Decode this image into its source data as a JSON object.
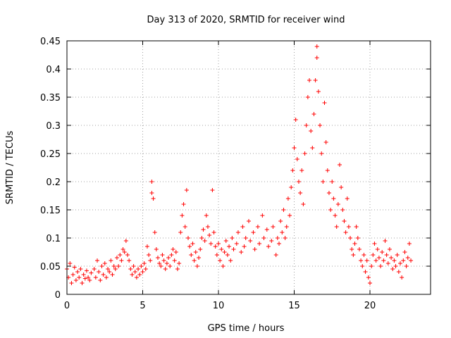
{
  "chart_data": {
    "type": "scatter",
    "title": "Day 313 of 2020, SRMTID for receiver wind",
    "xlabel": "GPS time / hours",
    "ylabel": "SRMTID / TECUs",
    "xlim": [
      0,
      24
    ],
    "ylim": [
      0,
      0.45
    ],
    "grid": true,
    "marker": "plus",
    "color": "#ff0000",
    "x_ticks": [
      {
        "value": 0,
        "label": "0"
      },
      {
        "value": 5,
        "label": "5"
      },
      {
        "value": 10,
        "label": "10"
      },
      {
        "value": 15,
        "label": "15"
      },
      {
        "value": 20,
        "label": "20"
      }
    ],
    "y_ticks": [
      {
        "value": 0,
        "label": "0"
      },
      {
        "value": 0.05,
        "label": "0.05"
      },
      {
        "value": 0.1,
        "label": "0.1"
      },
      {
        "value": 0.15,
        "label": "0.15"
      },
      {
        "value": 0.2,
        "label": "0.2"
      },
      {
        "value": 0.25,
        "label": "0.25"
      },
      {
        "value": 0.3,
        "label": "0.3"
      },
      {
        "value": 0.35,
        "label": "0.35"
      },
      {
        "value": 0.4,
        "label": "0.4"
      },
      {
        "value": 0.45,
        "label": "0.45"
      }
    ],
    "series": [
      {
        "name": "SRMTID",
        "points": [
          [
            0.0,
            0.045
          ],
          [
            0.1,
            0.03
          ],
          [
            0.2,
            0.055
          ],
          [
            0.3,
            0.02
          ],
          [
            0.4,
            0.035
          ],
          [
            0.5,
            0.048
          ],
          [
            0.6,
            0.025
          ],
          [
            0.7,
            0.04
          ],
          [
            0.8,
            0.03
          ],
          [
            0.9,
            0.045
          ],
          [
            1.0,
            0.02
          ],
          [
            1.1,
            0.035
          ],
          [
            1.2,
            0.028
          ],
          [
            1.3,
            0.042
          ],
          [
            1.4,
            0.03
          ],
          [
            1.5,
            0.025
          ],
          [
            1.6,
            0.038
          ],
          [
            1.8,
            0.045
          ],
          [
            1.9,
            0.03
          ],
          [
            2.0,
            0.06
          ],
          [
            2.1,
            0.04
          ],
          [
            2.2,
            0.025
          ],
          [
            2.3,
            0.05
          ],
          [
            2.4,
            0.035
          ],
          [
            2.5,
            0.055
          ],
          [
            2.6,
            0.03
          ],
          [
            2.7,
            0.045
          ],
          [
            2.8,
            0.04
          ],
          [
            2.9,
            0.06
          ],
          [
            3.0,
            0.035
          ],
          [
            3.1,
            0.05
          ],
          [
            3.2,
            0.045
          ],
          [
            3.3,
            0.065
          ],
          [
            3.4,
            0.05
          ],
          [
            3.5,
            0.07
          ],
          [
            3.6,
            0.06
          ],
          [
            3.7,
            0.08
          ],
          [
            3.8,
            0.075
          ],
          [
            3.9,
            0.095
          ],
          [
            4.0,
            0.07
          ],
          [
            4.1,
            0.06
          ],
          [
            4.2,
            0.045
          ],
          [
            4.3,
            0.035
          ],
          [
            4.4,
            0.05
          ],
          [
            4.5,
            0.04
          ],
          [
            4.6,
            0.03
          ],
          [
            4.7,
            0.045
          ],
          [
            4.8,
            0.035
          ],
          [
            4.9,
            0.05
          ],
          [
            5.0,
            0.04
          ],
          [
            5.1,
            0.055
          ],
          [
            5.2,
            0.045
          ],
          [
            5.3,
            0.085
          ],
          [
            5.4,
            0.07
          ],
          [
            5.5,
            0.06
          ],
          [
            5.6,
            0.18
          ],
          [
            5.6,
            0.2
          ],
          [
            5.7,
            0.17
          ],
          [
            5.8,
            0.11
          ],
          [
            5.9,
            0.08
          ],
          [
            6.0,
            0.065
          ],
          [
            6.1,
            0.055
          ],
          [
            6.2,
            0.05
          ],
          [
            6.3,
            0.07
          ],
          [
            6.4,
            0.06
          ],
          [
            6.5,
            0.045
          ],
          [
            6.6,
            0.055
          ],
          [
            6.7,
            0.065
          ],
          [
            6.8,
            0.05
          ],
          [
            6.9,
            0.07
          ],
          [
            7.0,
            0.08
          ],
          [
            7.1,
            0.06
          ],
          [
            7.2,
            0.075
          ],
          [
            7.3,
            0.045
          ],
          [
            7.4,
            0.055
          ],
          [
            7.5,
            0.11
          ],
          [
            7.6,
            0.14
          ],
          [
            7.7,
            0.16
          ],
          [
            7.8,
            0.12
          ],
          [
            7.9,
            0.185
          ],
          [
            8.0,
            0.1
          ],
          [
            8.1,
            0.085
          ],
          [
            8.2,
            0.07
          ],
          [
            8.3,
            0.09
          ],
          [
            8.4,
            0.06
          ],
          [
            8.5,
            0.075
          ],
          [
            8.6,
            0.05
          ],
          [
            8.7,
            0.065
          ],
          [
            8.8,
            0.08
          ],
          [
            8.9,
            0.1
          ],
          [
            9.0,
            0.115
          ],
          [
            9.1,
            0.095
          ],
          [
            9.2,
            0.14
          ],
          [
            9.3,
            0.12
          ],
          [
            9.4,
            0.105
          ],
          [
            9.5,
            0.09
          ],
          [
            9.6,
            0.185
          ],
          [
            9.7,
            0.11
          ],
          [
            9.8,
            0.085
          ],
          [
            9.9,
            0.07
          ],
          [
            10.0,
            0.09
          ],
          [
            10.1,
            0.06
          ],
          [
            10.2,
            0.08
          ],
          [
            10.3,
            0.05
          ],
          [
            10.4,
            0.075
          ],
          [
            10.5,
            0.095
          ],
          [
            10.6,
            0.07
          ],
          [
            10.7,
            0.085
          ],
          [
            10.8,
            0.06
          ],
          [
            10.9,
            0.1
          ],
          [
            11.0,
            0.08
          ],
          [
            11.2,
            0.09
          ],
          [
            11.3,
            0.11
          ],
          [
            11.5,
            0.075
          ],
          [
            11.6,
            0.12
          ],
          [
            11.7,
            0.085
          ],
          [
            11.8,
            0.1
          ],
          [
            12.0,
            0.13
          ],
          [
            12.1,
            0.095
          ],
          [
            12.3,
            0.11
          ],
          [
            12.4,
            0.08
          ],
          [
            12.6,
            0.12
          ],
          [
            12.7,
            0.09
          ],
          [
            12.9,
            0.14
          ],
          [
            13.0,
            0.1
          ],
          [
            13.2,
            0.115
          ],
          [
            13.3,
            0.085
          ],
          [
            13.5,
            0.095
          ],
          [
            13.6,
            0.12
          ],
          [
            13.8,
            0.07
          ],
          [
            13.9,
            0.1
          ],
          [
            14.0,
            0.09
          ],
          [
            14.1,
            0.13
          ],
          [
            14.2,
            0.11
          ],
          [
            14.3,
            0.15
          ],
          [
            14.4,
            0.1
          ],
          [
            14.5,
            0.12
          ],
          [
            14.6,
            0.17
          ],
          [
            14.7,
            0.14
          ],
          [
            14.8,
            0.19
          ],
          [
            14.9,
            0.22
          ],
          [
            15.0,
            0.26
          ],
          [
            15.1,
            0.31
          ],
          [
            15.2,
            0.24
          ],
          [
            15.3,
            0.2
          ],
          [
            15.4,
            0.18
          ],
          [
            15.5,
            0.22
          ],
          [
            15.6,
            0.16
          ],
          [
            15.7,
            0.25
          ],
          [
            15.8,
            0.3
          ],
          [
            15.9,
            0.35
          ],
          [
            16.0,
            0.38
          ],
          [
            16.1,
            0.29
          ],
          [
            16.2,
            0.26
          ],
          [
            16.3,
            0.32
          ],
          [
            16.4,
            0.38
          ],
          [
            16.5,
            0.42
          ],
          [
            16.5,
            0.44
          ],
          [
            16.6,
            0.36
          ],
          [
            16.7,
            0.3
          ],
          [
            16.8,
            0.25
          ],
          [
            16.9,
            0.2
          ],
          [
            17.0,
            0.34
          ],
          [
            17.1,
            0.27
          ],
          [
            17.2,
            0.22
          ],
          [
            17.3,
            0.18
          ],
          [
            17.4,
            0.15
          ],
          [
            17.5,
            0.2
          ],
          [
            17.6,
            0.17
          ],
          [
            17.7,
            0.14
          ],
          [
            17.8,
            0.12
          ],
          [
            17.9,
            0.16
          ],
          [
            18.0,
            0.23
          ],
          [
            18.1,
            0.19
          ],
          [
            18.2,
            0.15
          ],
          [
            18.3,
            0.13
          ],
          [
            18.4,
            0.11
          ],
          [
            18.5,
            0.17
          ],
          [
            18.6,
            0.12
          ],
          [
            18.7,
            0.1
          ],
          [
            18.8,
            0.08
          ],
          [
            18.9,
            0.07
          ],
          [
            19.0,
            0.09
          ],
          [
            19.1,
            0.12
          ],
          [
            19.2,
            0.1
          ],
          [
            19.3,
            0.08
          ],
          [
            19.4,
            0.06
          ],
          [
            19.5,
            0.05
          ],
          [
            19.6,
            0.07
          ],
          [
            19.7,
            0.04
          ],
          [
            19.8,
            0.06
          ],
          [
            19.9,
            0.03
          ],
          [
            20.0,
            0.02
          ],
          [
            20.1,
            0.05
          ],
          [
            20.2,
            0.07
          ],
          [
            20.3,
            0.09
          ],
          [
            20.4,
            0.06
          ],
          [
            20.5,
            0.08
          ],
          [
            20.6,
            0.065
          ],
          [
            20.7,
            0.05
          ],
          [
            20.8,
            0.075
          ],
          [
            20.9,
            0.06
          ],
          [
            21.0,
            0.095
          ],
          [
            21.1,
            0.07
          ],
          [
            21.2,
            0.055
          ],
          [
            21.3,
            0.08
          ],
          [
            21.4,
            0.065
          ],
          [
            21.5,
            0.045
          ],
          [
            21.6,
            0.06
          ],
          [
            21.7,
            0.05
          ],
          [
            21.8,
            0.07
          ],
          [
            21.9,
            0.04
          ],
          [
            22.0,
            0.055
          ],
          [
            22.1,
            0.03
          ],
          [
            22.2,
            0.06
          ],
          [
            22.3,
            0.075
          ],
          [
            22.4,
            0.05
          ],
          [
            22.5,
            0.065
          ],
          [
            22.6,
            0.09
          ],
          [
            22.7,
            0.06
          ]
        ]
      }
    ]
  }
}
